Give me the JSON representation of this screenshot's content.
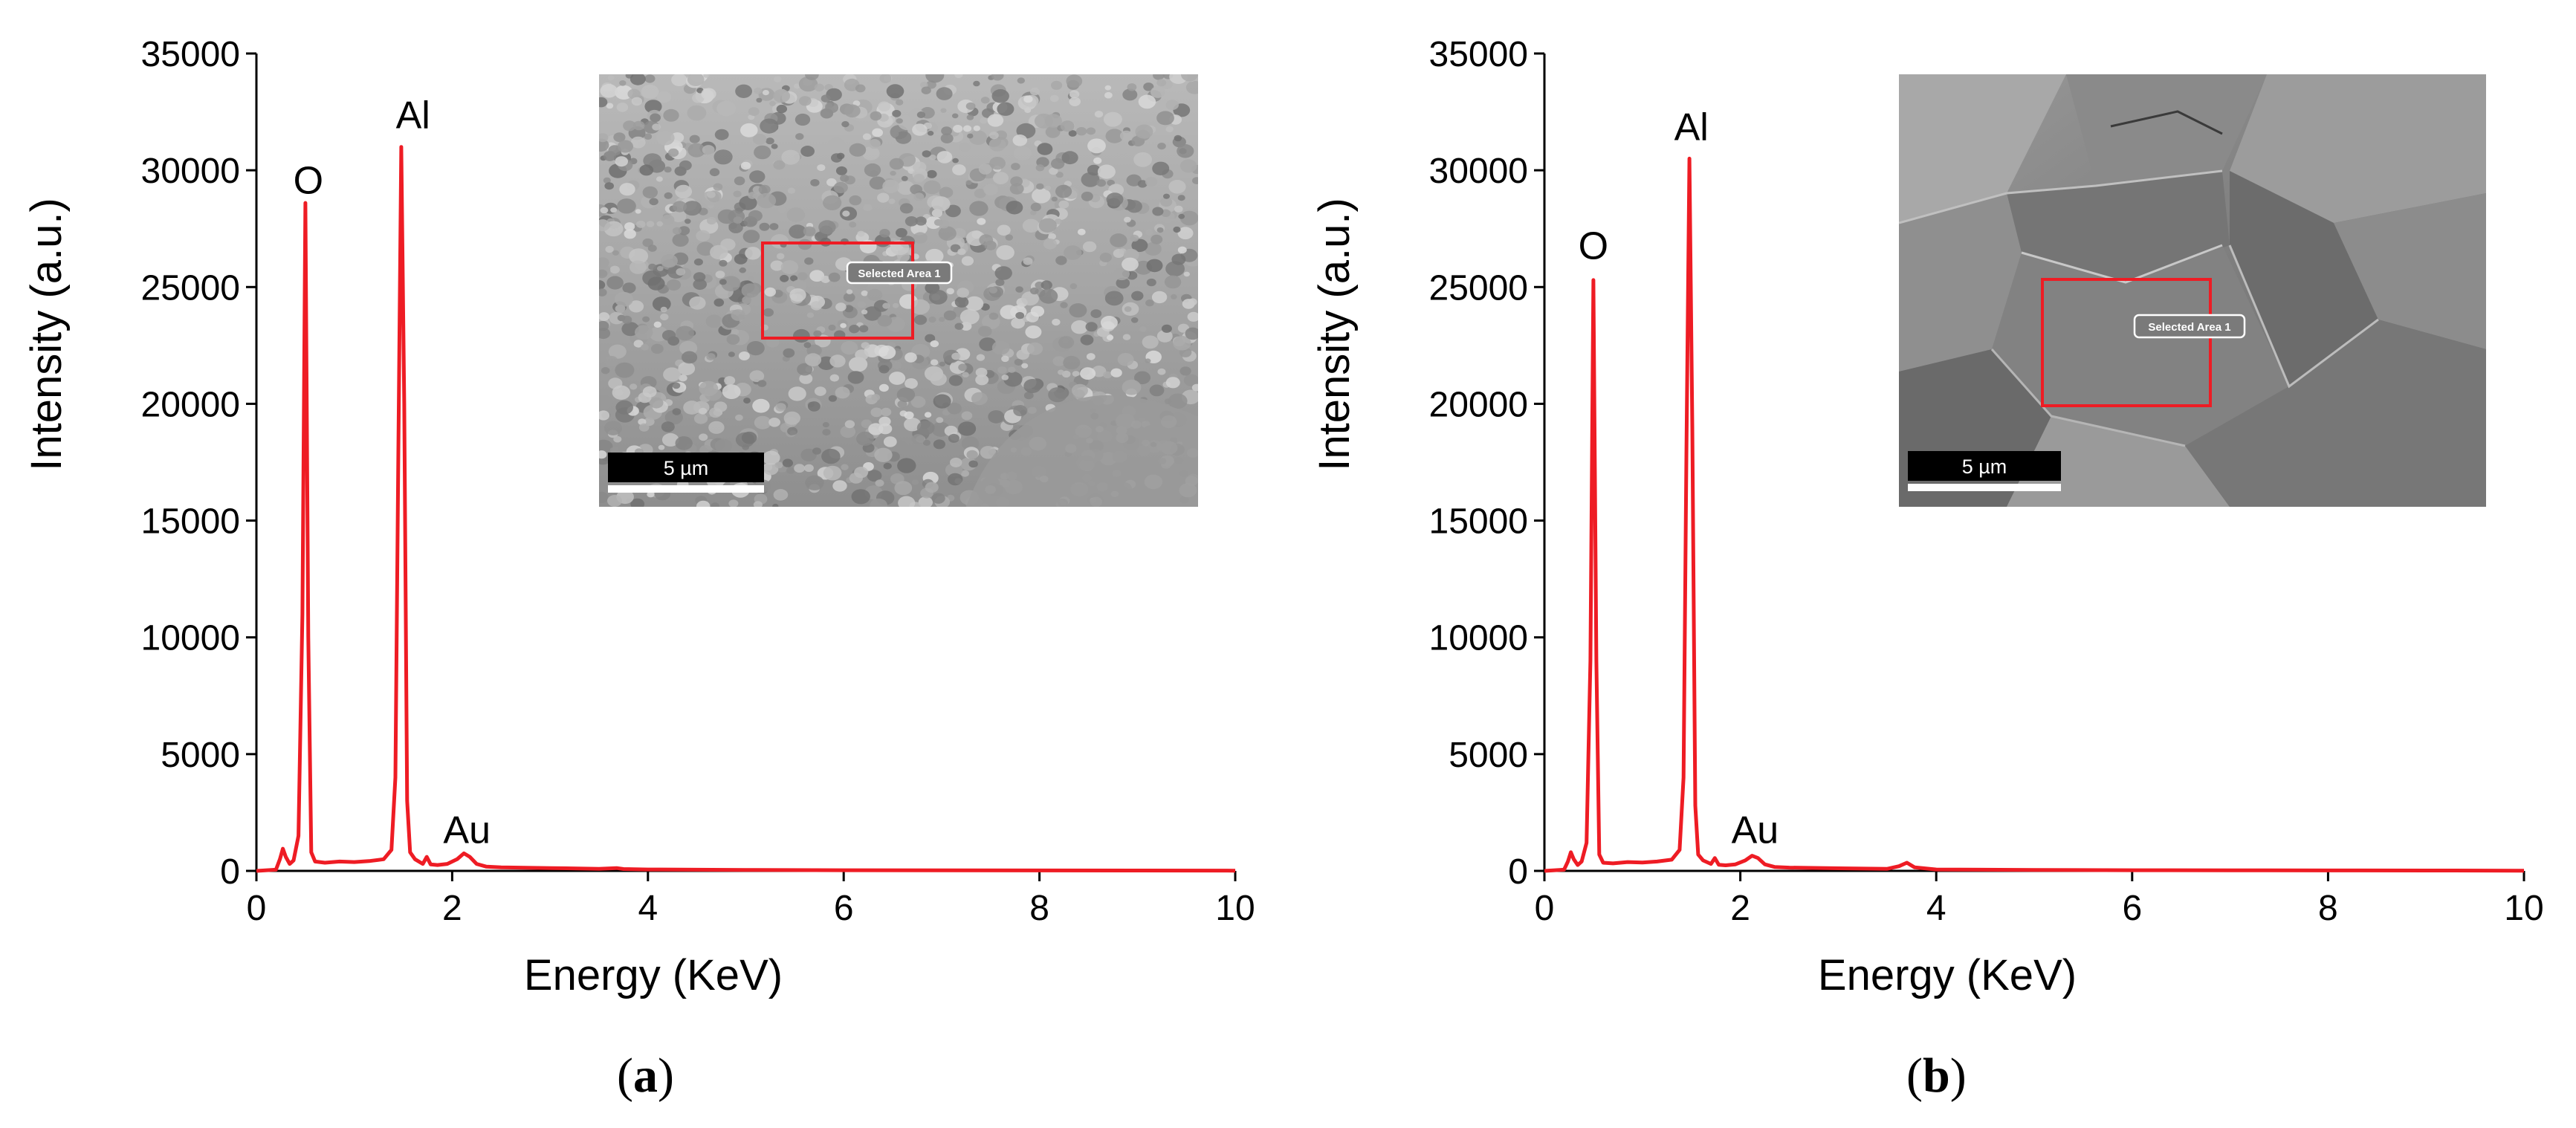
{
  "panels": [
    {
      "label": "a",
      "chart_data": {
        "type": "line",
        "xlabel": "Energy (KeV)",
        "ylabel": "Intensity (a.u.)",
        "xlim": [
          0,
          10
        ],
        "ylim": [
          0,
          35000
        ],
        "xticks": [
          0,
          2,
          4,
          6,
          8,
          10
        ],
        "yticks": [
          0,
          5000,
          10000,
          15000,
          20000,
          25000,
          30000,
          35000
        ],
        "grid": false,
        "series": [
          {
            "color": "#ee1c24",
            "x": [
              0.0,
              0.2,
              0.24,
              0.27,
              0.3,
              0.34,
              0.38,
              0.43,
              0.47,
              0.5,
              0.53,
              0.56,
              0.6,
              0.7,
              0.85,
              1.0,
              1.15,
              1.3,
              1.38,
              1.42,
              1.45,
              1.48,
              1.51,
              1.54,
              1.57,
              1.62,
              1.7,
              1.74,
              1.78,
              1.85,
              1.95,
              2.05,
              2.12,
              2.18,
              2.25,
              2.35,
              2.5,
              3.0,
              3.5,
              3.68,
              3.75,
              4.0,
              5.0,
              6.0,
              7.0,
              8.0,
              9.0,
              10.0
            ],
            "y": [
              0,
              50,
              500,
              950,
              600,
              300,
              450,
              1500,
              11000,
              28600,
              10000,
              800,
              400,
              350,
              400,
              380,
              420,
              500,
              900,
              4000,
              18000,
              31000,
              20000,
              3000,
              800,
              500,
              300,
              600,
              280,
              250,
              300,
              500,
              750,
              600,
              300,
              180,
              150,
              120,
              90,
              120,
              80,
              60,
              40,
              30,
              25,
              20,
              15,
              10
            ]
          }
        ],
        "annotations": [
          {
            "text": "O",
            "x": 0.53,
            "y": 29000
          },
          {
            "text": "Al",
            "x": 1.6,
            "y": 31800
          },
          {
            "text": "Au",
            "x": 2.15,
            "y": 1200
          }
        ]
      },
      "inset": {
        "scalebar_label": "5 µm",
        "selection_label": "Selected Area 1",
        "texture": "fine-grain"
      }
    },
    {
      "label": "b",
      "chart_data": {
        "type": "line",
        "xlabel": "Energy (KeV)",
        "ylabel": "Intensity (a.u.)",
        "xlim": [
          0,
          10
        ],
        "ylim": [
          0,
          35000
        ],
        "xticks": [
          0,
          2,
          4,
          6,
          8,
          10
        ],
        "yticks": [
          0,
          5000,
          10000,
          15000,
          20000,
          25000,
          30000,
          35000
        ],
        "grid": false,
        "series": [
          {
            "color": "#ee1c24",
            "x": [
              0.0,
              0.2,
              0.24,
              0.27,
              0.3,
              0.34,
              0.38,
              0.43,
              0.47,
              0.5,
              0.53,
              0.56,
              0.6,
              0.7,
              0.85,
              1.0,
              1.15,
              1.3,
              1.38,
              1.42,
              1.45,
              1.48,
              1.51,
              1.54,
              1.57,
              1.62,
              1.7,
              1.74,
              1.78,
              1.85,
              1.95,
              2.05,
              2.12,
              2.18,
              2.25,
              2.35,
              2.5,
              3.0,
              3.5,
              3.62,
              3.7,
              3.78,
              4.0,
              5.0,
              6.0,
              7.0,
              8.0,
              9.0,
              10.0
            ],
            "y": [
              0,
              50,
              400,
              800,
              500,
              250,
              400,
              1200,
              9000,
              25300,
              9000,
              700,
              350,
              320,
              380,
              360,
              400,
              480,
              900,
              4000,
              18000,
              30500,
              19000,
              2800,
              700,
              450,
              300,
              550,
              260,
              240,
              280,
              450,
              650,
              550,
              280,
              170,
              140,
              110,
              90,
              200,
              350,
              150,
              60,
              40,
              30,
              25,
              20,
              15,
              10
            ]
          }
        ],
        "annotations": [
          {
            "text": "O",
            "x": 0.5,
            "y": 26200
          },
          {
            "text": "Al",
            "x": 1.5,
            "y": 31300
          },
          {
            "text": "Au",
            "x": 2.15,
            "y": 1200
          }
        ]
      },
      "inset": {
        "scalebar_label": "5 µm",
        "selection_label": "Selected Area 1",
        "texture": "faceted"
      }
    }
  ]
}
